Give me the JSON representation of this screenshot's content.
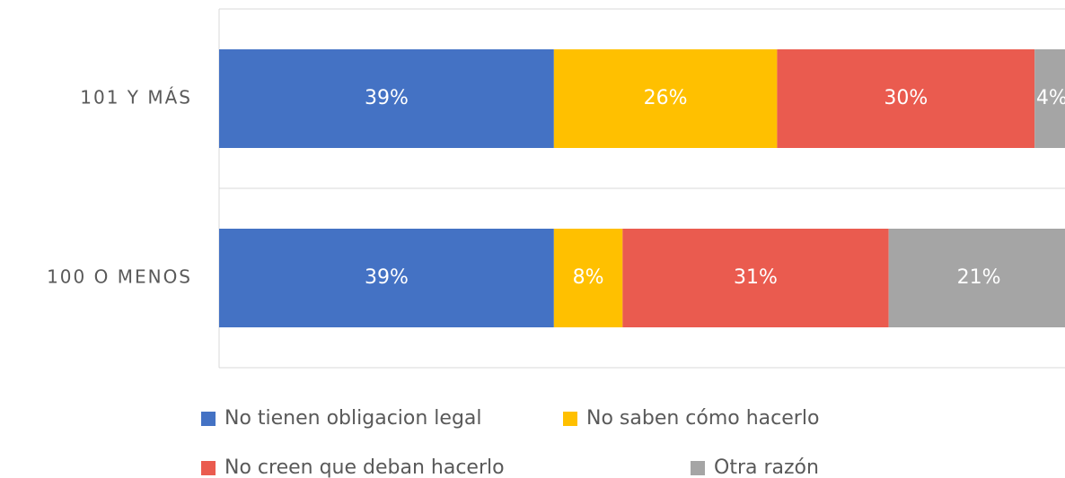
{
  "chart_data": {
    "type": "stacked-bar-horizontal",
    "categories": [
      "101 Y MÁS",
      "100 O MENOS"
    ],
    "xlim": [
      0,
      100
    ],
    "series": [
      {
        "name": "No tienen obligacion legal",
        "color": "#4472c4",
        "values": [
          39,
          39
        ],
        "value_labels": [
          "39%",
          "39%"
        ]
      },
      {
        "name": "No saben cómo hacerlo",
        "color": "#ffc000",
        "values": [
          26,
          8
        ],
        "value_labels": [
          "26%",
          "8%"
        ]
      },
      {
        "name": "No creen que deban hacerlo",
        "color": "#ea5b4f",
        "values": [
          30,
          31
        ],
        "value_labels": [
          "30%",
          "31%"
        ]
      },
      {
        "name": "Otra razón",
        "color": "#a5a5a5",
        "values": [
          4,
          21
        ],
        "value_labels": [
          "4%",
          "21%"
        ]
      }
    ]
  }
}
